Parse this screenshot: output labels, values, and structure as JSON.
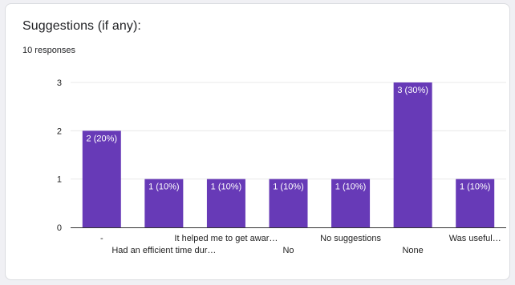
{
  "question": {
    "title": "Suggestions (if any):",
    "responses_label": "10 responses"
  },
  "colors": {
    "bar": "#673ab7",
    "grid": "#e8e8e8",
    "axis": "#333333",
    "tick_text": "#222222",
    "bar_label": "#ffffff"
  },
  "chart_data": {
    "type": "bar",
    "title": "",
    "xlabel": "",
    "ylabel": "",
    "categories": [
      "-",
      "Had an efficient time dur…",
      "It helped me to get awar…",
      "No",
      "No suggestions",
      "None",
      "Was useful…"
    ],
    "values": [
      2,
      1,
      1,
      1,
      1,
      3,
      1
    ],
    "data_labels": [
      "2 (20%)",
      "1 (10%)",
      "1 (10%)",
      "1 (10%)",
      "1 (10%)",
      "3 (30%)",
      "1 (10%)"
    ],
    "ylim": [
      0,
      3
    ],
    "yticks": [
      0,
      1,
      2,
      3
    ],
    "grid": true,
    "legend": "none"
  }
}
